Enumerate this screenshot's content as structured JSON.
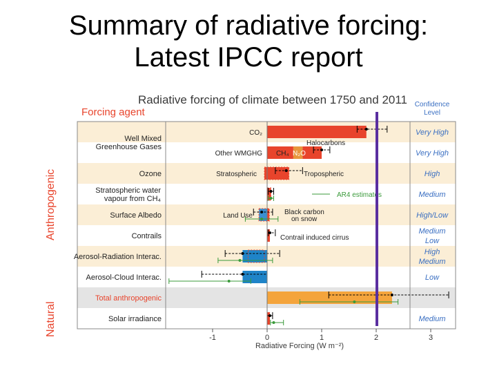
{
  "slide": {
    "title_line1": "Summary of radiative forcing:",
    "title_line2": "Latest IPCC report"
  },
  "chart_data": {
    "type": "bar",
    "title": "Radiative forcing of climate between 1750 and 2011",
    "column_headers": {
      "forcing_agent": "Forcing agent",
      "confidence": "Confidence Level"
    },
    "group_labels": {
      "anthropogenic": "Anthropogenic",
      "natural": "Natural"
    },
    "xlabel": "Radiative Forcing (W m⁻²)",
    "xlim": [
      -1.75,
      3.3
    ],
    "xticks": [
      -1,
      0,
      1,
      2,
      3
    ],
    "grid": false,
    "categories": [
      "Well Mixed Greenhouse Gases",
      "Ozone",
      "Stratospheric water vapour from CH₄",
      "Surface Albedo",
      "Contrails",
      "Aerosol-Radiation Interac.",
      "Aerosol-Cloud Interac.",
      "Total anthropogenic",
      "Solar irradiance"
    ],
    "confidence": [
      "Very High",
      "Very High",
      "High",
      "Medium",
      "High/Low",
      "Medium Low",
      "High Medium",
      "Low",
      "",
      "Medium"
    ],
    "segments": [
      {
        "row": 0,
        "label": "CO₂",
        "from": 0,
        "to": 1.82,
        "color": "#e8442c"
      },
      {
        "row": 1,
        "label": "Other WMGHG",
        "from": 0,
        "to": 0,
        "color": "#e8442c"
      },
      {
        "row": 1,
        "label": "CH₄",
        "from": 0,
        "to": 0.48,
        "color": "#e8442c"
      },
      {
        "row": 1,
        "label": "N₂O",
        "from": 0.48,
        "to": 0.65,
        "color": "#e8963c"
      },
      {
        "row": 1,
        "label": "Halocarbons",
        "from": 0.65,
        "to": 1.0,
        "color": "#e8442c"
      },
      {
        "row": 2,
        "label": "Stratospheric",
        "from": -0.05,
        "to": 0,
        "color": "#e8442c"
      },
      {
        "row": 2,
        "label": "Tropospheric",
        "from": 0,
        "to": 0.4,
        "color": "#e8442c"
      },
      {
        "row": 3,
        "label": "",
        "from": 0,
        "to": 0.07,
        "color": "#e8442c"
      },
      {
        "row": 4,
        "label": "Land Use",
        "from": -0.15,
        "to": 0,
        "color": "#3a8fd0"
      },
      {
        "row": 4,
        "label": "Black carbon on snow",
        "from": 0,
        "to": 0.04,
        "color": "#e8442c"
      },
      {
        "row": 5,
        "label": "Contrail induced cirrus",
        "from": 0,
        "to": 0.05,
        "color": "#e8442c"
      },
      {
        "row": 6,
        "label": "",
        "from": -0.45,
        "to": 0,
        "color": "#1f84c8"
      },
      {
        "row": 7,
        "label": "",
        "from": -0.45,
        "to": 0,
        "color": "#1f84c8"
      },
      {
        "row": 8,
        "label": "",
        "from": 0,
        "to": 2.29,
        "color": "#f4a43c"
      },
      {
        "row": 9,
        "label": "",
        "from": 0,
        "to": 0.05,
        "color": "#e8442c"
      }
    ],
    "error_bars": [
      {
        "row": 0,
        "low": 1.65,
        "high": 2.2,
        "center": 1.82,
        "color": "#000"
      },
      {
        "row": 1,
        "low": 0.85,
        "high": 1.15,
        "center": 1.0,
        "color": "#000"
      },
      {
        "row": 2,
        "low": 0.15,
        "high": 0.65,
        "center": 0.35,
        "color": "#000"
      },
      {
        "row": 3,
        "low": 0.02,
        "high": 0.12,
        "center": 0.07,
        "color": "#000"
      },
      {
        "row": 4,
        "low": -0.25,
        "high": 0.1,
        "center": -0.1,
        "color": "#000"
      },
      {
        "row": 5,
        "low": 0.02,
        "high": 0.15,
        "center": 0.05,
        "color": "#000"
      },
      {
        "row": 6,
        "low": -0.77,
        "high": 0.23,
        "center": -0.45,
        "color": "#000"
      },
      {
        "row": 7,
        "low": -1.2,
        "high": 0.0,
        "center": -0.45,
        "color": "#000"
      },
      {
        "row": 8,
        "low": 1.13,
        "high": 3.33,
        "center": 2.29,
        "color": "#000"
      },
      {
        "row": 9,
        "low": 0.0,
        "high": 0.1,
        "center": 0.05,
        "color": "#000"
      }
    ],
    "ar4_estimates": {
      "label": "AR4 estimates",
      "color": "#3a9a3a",
      "points": [
        {
          "row": 3,
          "low": 0.02,
          "high": 0.12,
          "center": 0.07
        },
        {
          "row": 4,
          "low": -0.4,
          "high": 0.2,
          "center": -0.1
        },
        {
          "row": 6,
          "low": -0.9,
          "high": 0.1,
          "center": -0.5
        },
        {
          "row": 7,
          "low": -1.8,
          "high": -0.3,
          "center": -0.7
        },
        {
          "row": 8,
          "low": 0.6,
          "high": 2.4,
          "center": 1.6
        },
        {
          "row": 9,
          "low": 0.06,
          "high": 0.3,
          "center": 0.12
        }
      ]
    }
  }
}
